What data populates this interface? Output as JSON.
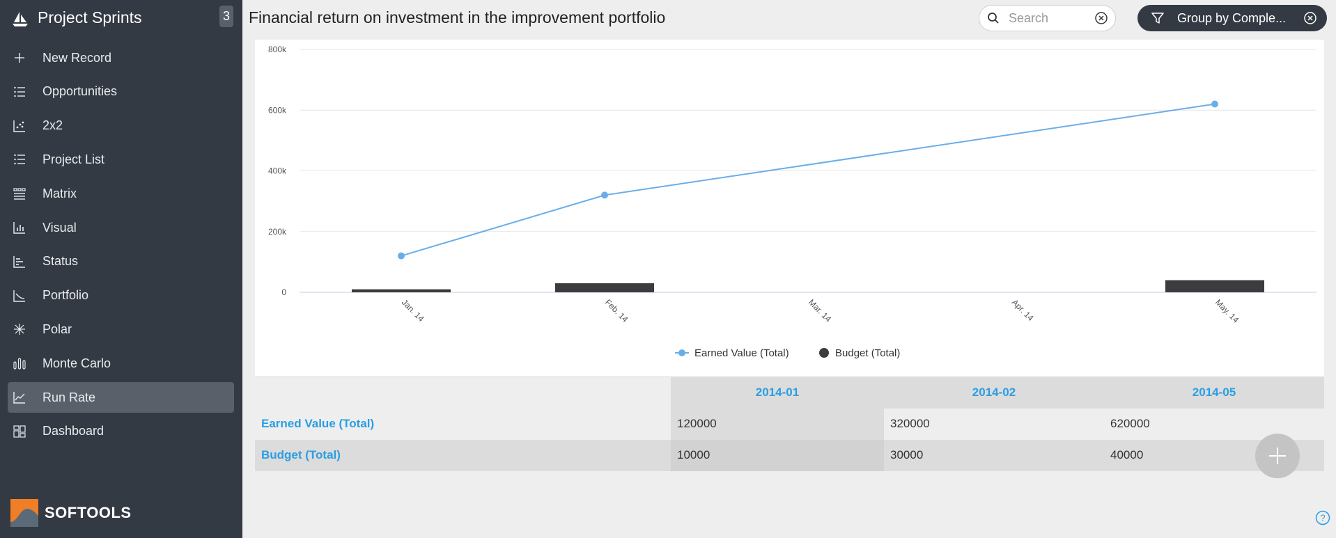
{
  "app": {
    "title": "Project Sprints",
    "badge": "3",
    "brand": "SOFTOOLS"
  },
  "sidebar": {
    "items": [
      {
        "label": "New Record",
        "icon": "plus-icon"
      },
      {
        "label": "Opportunities",
        "icon": "list-icon"
      },
      {
        "label": "2x2",
        "icon": "scatter-icon"
      },
      {
        "label": "Project List",
        "icon": "list-icon"
      },
      {
        "label": "Matrix",
        "icon": "matrix-icon"
      },
      {
        "label": "Visual",
        "icon": "bar-chart-icon"
      },
      {
        "label": "Status",
        "icon": "status-icon"
      },
      {
        "label": "Portfolio",
        "icon": "portfolio-icon"
      },
      {
        "label": "Polar",
        "icon": "polar-icon"
      },
      {
        "label": "Monte Carlo",
        "icon": "bars-icon"
      },
      {
        "label": "Run Rate",
        "icon": "line-chart-icon",
        "active": true
      },
      {
        "label": "Dashboard",
        "icon": "dashboard-icon"
      }
    ]
  },
  "header": {
    "title": "Financial return on investment in the improvement portfolio",
    "search_placeholder": "Search",
    "group_label": "Group by Comple..."
  },
  "colors": {
    "sidebar_bg": "#343a43",
    "active_item": "#5a606a",
    "earned_value": "#6aaee8",
    "budget": "#3c3c3e",
    "link": "#2a9ee2",
    "brand_orange": "#f07e26"
  },
  "chart_data": {
    "type": "line",
    "categories": [
      "Jan. 14",
      "Feb. 14",
      "Mar. 14",
      "Apr. 14",
      "May. 14"
    ],
    "y_ticks": [
      "0",
      "200k",
      "400k",
      "600k",
      "800k"
    ],
    "ylim": [
      0,
      800000
    ],
    "grid": true,
    "legend_position": "bottom-center",
    "series": [
      {
        "name": "Earned Value (Total)",
        "kind": "line",
        "color": "#6aaee8",
        "points": [
          {
            "x": "Jan. 14",
            "y": 120000
          },
          {
            "x": "Feb. 14",
            "y": 320000
          },
          {
            "x": "May. 14",
            "y": 620000
          }
        ]
      },
      {
        "name": "Budget (Total)",
        "kind": "bar",
        "color": "#3c3c3e",
        "points": [
          {
            "x": "Jan. 14",
            "y": 10000
          },
          {
            "x": "Feb. 14",
            "y": 30000
          },
          {
            "x": "May. 14",
            "y": 40000
          }
        ]
      }
    ]
  },
  "table": {
    "columns": [
      "2014-01",
      "2014-02",
      "2014-05"
    ],
    "rows": [
      {
        "label": "Earned Value (Total)",
        "values": [
          "120000",
          "320000",
          "620000"
        ]
      },
      {
        "label": "Budget (Total)",
        "values": [
          "10000",
          "30000",
          "40000"
        ]
      }
    ]
  }
}
